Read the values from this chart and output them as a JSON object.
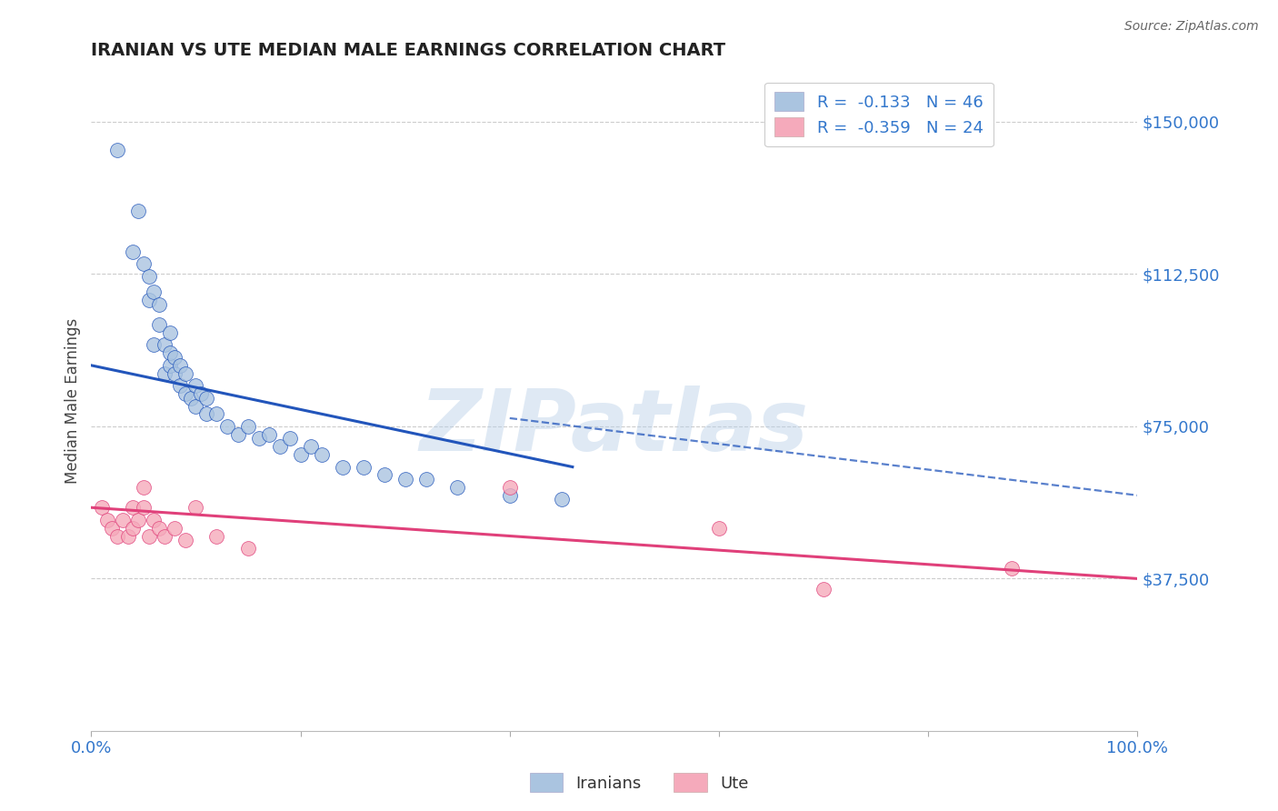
{
  "title": "IRANIAN VS UTE MEDIAN MALE EARNINGS CORRELATION CHART",
  "source_text": "Source: ZipAtlas.com",
  "ylabel": "Median Male Earnings",
  "watermark": "ZIPatlas",
  "legend_r1": "R =  -0.133   N = 46",
  "legend_r2": "R =  -0.359   N = 24",
  "legend_label1": "Iranians",
  "legend_label2": "Ute",
  "color_iranian": "#aac4e0",
  "color_ute": "#f5aabb",
  "color_trend_iranian": "#2255bb",
  "color_trend_ute": "#e0407a",
  "color_title": "#222222",
  "color_axis_label": "#444444",
  "color_tick_label": "#3377cc",
  "color_source": "#666666",
  "background_color": "#ffffff",
  "grid_color": "#cccccc",
  "xmin": 0.0,
  "xmax": 1.0,
  "ymin": 0,
  "ymax": 162500,
  "yticks": [
    37500,
    75000,
    112500,
    150000
  ],
  "ytick_labels": [
    "$37,500",
    "$75,000",
    "$112,500",
    "$150,000"
  ],
  "iranian_x": [
    0.025,
    0.04,
    0.045,
    0.05,
    0.055,
    0.055,
    0.06,
    0.06,
    0.065,
    0.065,
    0.07,
    0.07,
    0.075,
    0.075,
    0.075,
    0.08,
    0.08,
    0.085,
    0.085,
    0.09,
    0.09,
    0.095,
    0.1,
    0.1,
    0.105,
    0.11,
    0.11,
    0.12,
    0.13,
    0.14,
    0.15,
    0.16,
    0.17,
    0.18,
    0.19,
    0.2,
    0.21,
    0.22,
    0.24,
    0.26,
    0.28,
    0.3,
    0.32,
    0.35,
    0.4,
    0.45
  ],
  "iranian_y": [
    143000,
    118000,
    128000,
    115000,
    106000,
    112000,
    95000,
    108000,
    100000,
    105000,
    95000,
    88000,
    90000,
    93000,
    98000,
    88000,
    92000,
    85000,
    90000,
    83000,
    88000,
    82000,
    80000,
    85000,
    83000,
    78000,
    82000,
    78000,
    75000,
    73000,
    75000,
    72000,
    73000,
    70000,
    72000,
    68000,
    70000,
    68000,
    65000,
    65000,
    63000,
    62000,
    62000,
    60000,
    58000,
    57000
  ],
  "ute_x": [
    0.01,
    0.015,
    0.02,
    0.025,
    0.03,
    0.035,
    0.04,
    0.04,
    0.045,
    0.05,
    0.05,
    0.055,
    0.06,
    0.065,
    0.07,
    0.08,
    0.09,
    0.1,
    0.12,
    0.15,
    0.4,
    0.6,
    0.7,
    0.88
  ],
  "ute_y": [
    55000,
    52000,
    50000,
    48000,
    52000,
    48000,
    55000,
    50000,
    52000,
    60000,
    55000,
    48000,
    52000,
    50000,
    48000,
    50000,
    47000,
    55000,
    48000,
    45000,
    60000,
    50000,
    35000,
    40000
  ],
  "trend_ir_x0": 0.0,
  "trend_ir_y0": 90000,
  "trend_ir_x1": 0.46,
  "trend_ir_y1": 65000,
  "trend_dash_x0": 0.4,
  "trend_dash_y0": 77000,
  "trend_dash_x1": 1.0,
  "trend_dash_y1": 58000,
  "trend_ut_x0": 0.0,
  "trend_ut_y0": 55000,
  "trend_ut_x1": 1.0,
  "trend_ut_y1": 37500
}
